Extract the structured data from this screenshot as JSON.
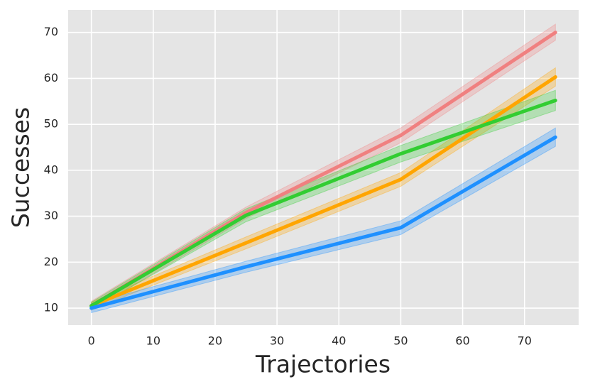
{
  "chart_data": {
    "type": "line",
    "x_label": "Trajectories",
    "y_label": "Successes",
    "x": [
      0,
      25,
      50,
      75
    ],
    "series": [
      {
        "color": "#f08080",
        "values": [
          10.5,
          30.8,
          47.6,
          70.0
        ],
        "lower": [
          9.5,
          29.5,
          46.0,
          68.3
        ],
        "upper": [
          11.5,
          32.0,
          49.2,
          71.8
        ]
      },
      {
        "color": "#ffa500",
        "values": [
          10.5,
          24.2,
          38.0,
          60.3
        ],
        "lower": [
          9.7,
          22.9,
          36.5,
          58.3
        ],
        "upper": [
          11.3,
          25.5,
          39.5,
          62.3
        ]
      },
      {
        "color": "#32cd32",
        "values": [
          10.5,
          30.2,
          43.6,
          55.2
        ],
        "lower": [
          9.7,
          28.8,
          41.8,
          53.0
        ],
        "upper": [
          11.3,
          31.6,
          45.4,
          57.4
        ]
      },
      {
        "color": "#1e90ff",
        "values": [
          10.0,
          19.0,
          27.5,
          47.2
        ],
        "lower": [
          9.0,
          17.8,
          26.0,
          45.2
        ],
        "upper": [
          11.0,
          20.2,
          29.0,
          49.2
        ]
      }
    ],
    "xlim": [
      -3.75,
      78.75
    ],
    "ylim": [
      6.3,
      74.9
    ],
    "xticks": [
      0,
      10,
      20,
      30,
      40,
      50,
      60,
      70
    ],
    "yticks": [
      10,
      20,
      30,
      40,
      50,
      60,
      70
    ],
    "grid": true
  }
}
